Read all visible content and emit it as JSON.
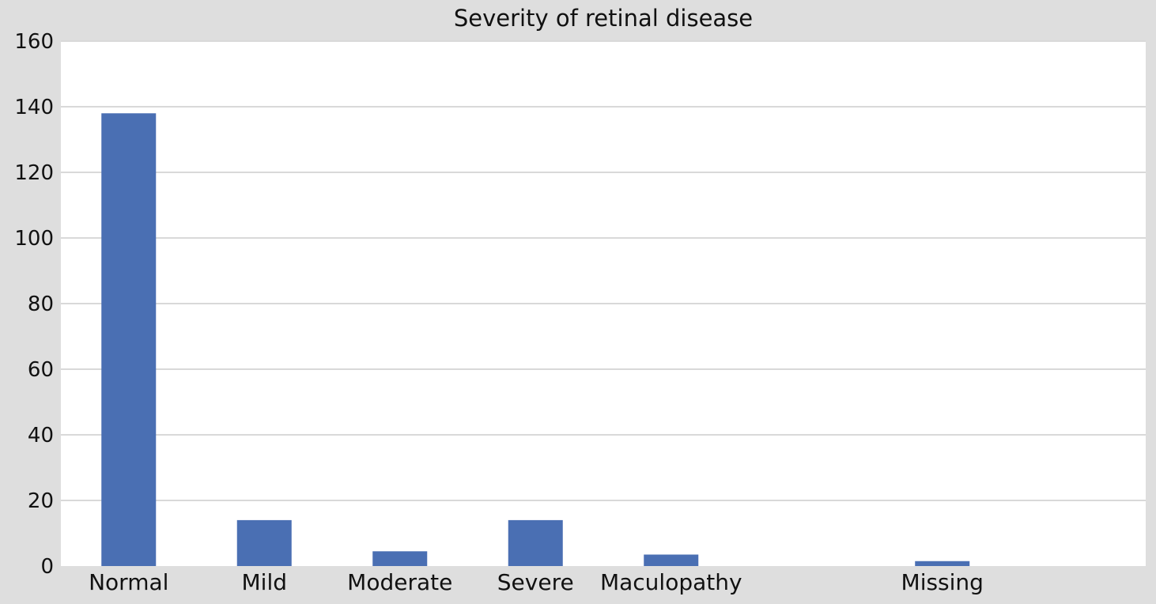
{
  "chart_data": {
    "type": "bar",
    "title": "Severity of retinal disease",
    "xlabel": "",
    "ylabel": "",
    "categories": [
      "Normal",
      "Mild",
      "Moderate",
      "Severe",
      "Maculopathy",
      "",
      "Missing",
      ""
    ],
    "values": [
      138,
      14,
      4.5,
      14,
      3.5,
      0,
      1.5,
      0
    ],
    "ylim": [
      0,
      160
    ],
    "yticks": [
      0,
      20,
      40,
      60,
      80,
      100,
      120,
      140,
      160
    ],
    "grid": true,
    "legend": "none",
    "colors": {
      "bar": "#4a6fb3",
      "plot_background": "#ffffff",
      "outer_background": "#dedede",
      "grid": "#d9d9d9"
    }
  }
}
